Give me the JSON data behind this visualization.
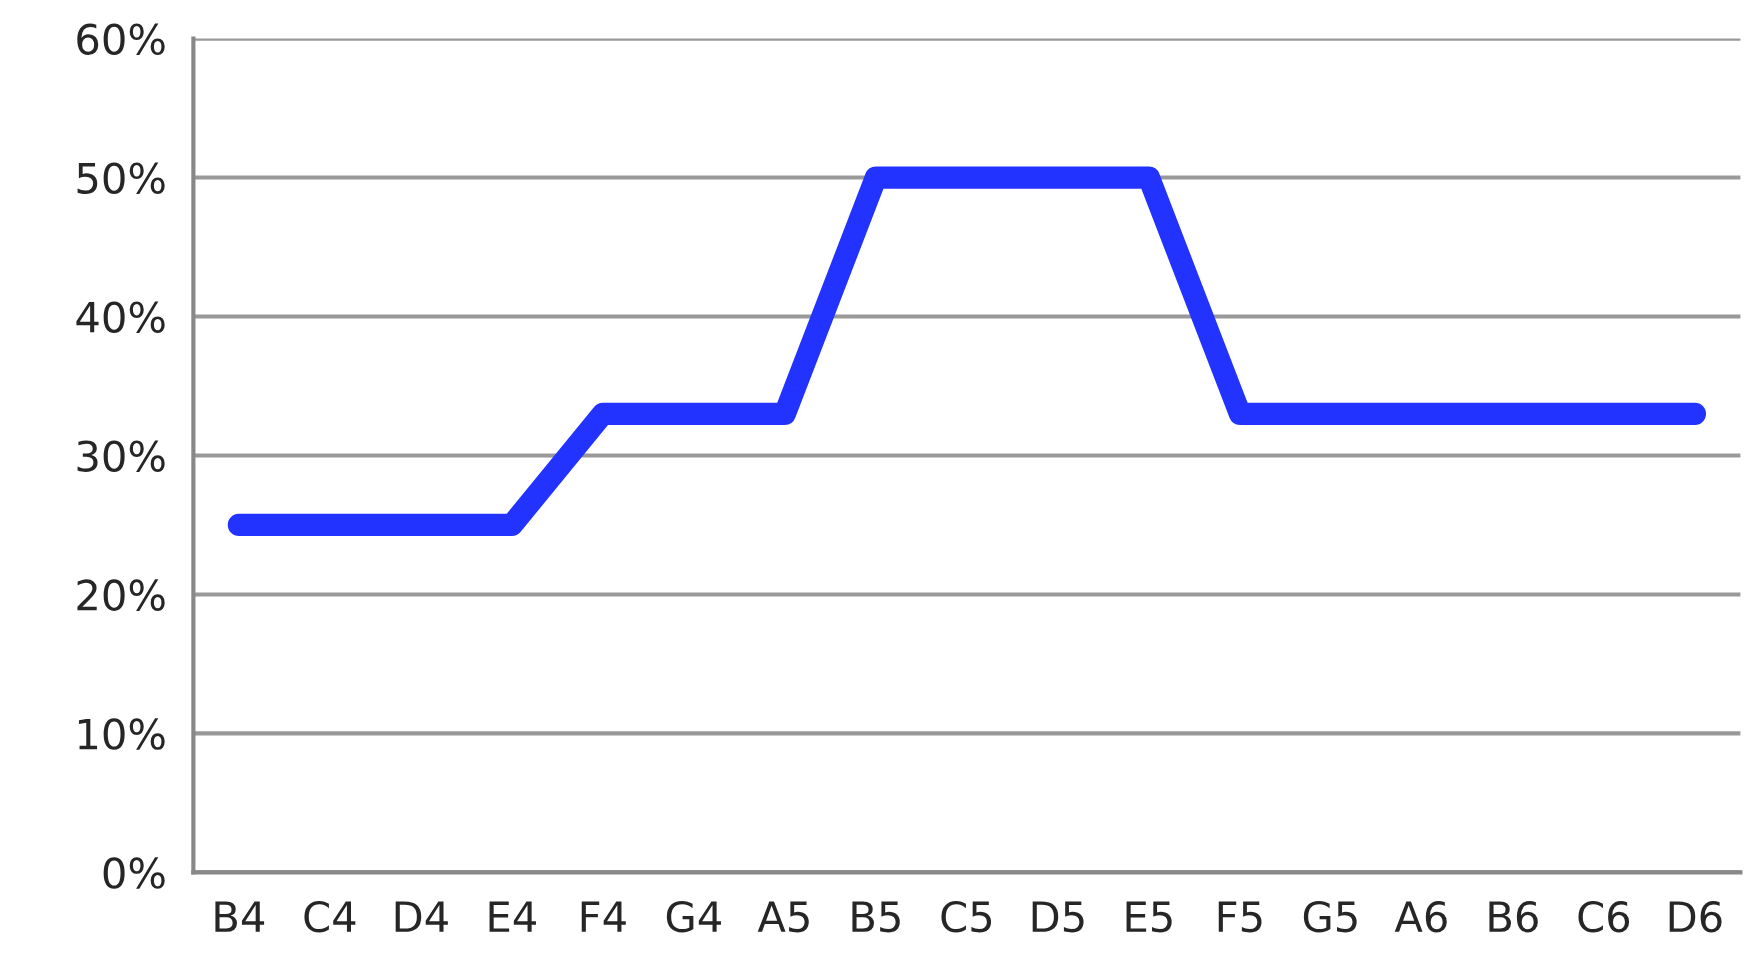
{
  "chart_data": {
    "type": "line",
    "categories": [
      "B4",
      "C4",
      "D4",
      "E4",
      "F4",
      "G4",
      "A5",
      "B5",
      "C5",
      "D5",
      "E5",
      "F5",
      "G5",
      "A6",
      "B6",
      "C6",
      "D6"
    ],
    "series": [
      {
        "values": [
          25,
          25,
          25,
          25,
          33,
          33,
          33,
          50,
          50,
          50,
          50,
          33,
          33,
          33,
          33,
          33,
          33
        ],
        "color": "#2233ff"
      }
    ],
    "ylim": [
      0,
      60
    ],
    "yticks": [
      {
        "value": 0,
        "label": "0%"
      },
      {
        "value": 10,
        "label": "10%"
      },
      {
        "value": 20,
        "label": "20%"
      },
      {
        "value": 30,
        "label": "30%"
      },
      {
        "value": 40,
        "label": "40%"
      },
      {
        "value": 50,
        "label": "50%"
      },
      {
        "value": 60,
        "label": "60%"
      }
    ],
    "grid": "y",
    "line_style": "solid"
  }
}
